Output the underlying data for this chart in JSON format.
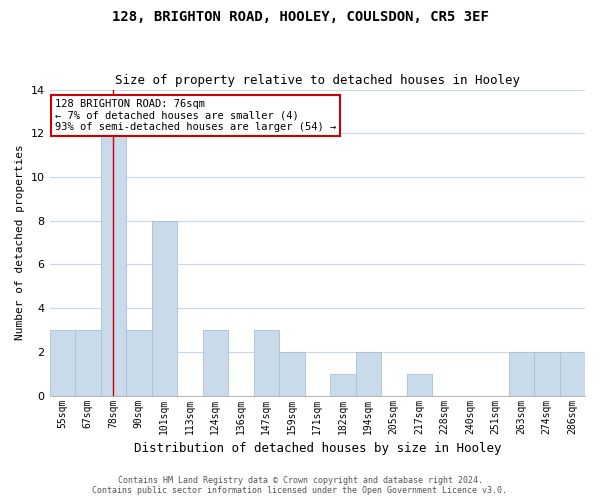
{
  "title": "128, BRIGHTON ROAD, HOOLEY, COULSDON, CR5 3EF",
  "subtitle": "Size of property relative to detached houses in Hooley",
  "xlabel": "Distribution of detached houses by size in Hooley",
  "ylabel": "Number of detached properties",
  "categories": [
    "55sqm",
    "67sqm",
    "78sqm",
    "90sqm",
    "101sqm",
    "113sqm",
    "124sqm",
    "136sqm",
    "147sqm",
    "159sqm",
    "171sqm",
    "182sqm",
    "194sqm",
    "205sqm",
    "217sqm",
    "228sqm",
    "240sqm",
    "251sqm",
    "263sqm",
    "274sqm",
    "286sqm"
  ],
  "values": [
    3,
    3,
    12,
    3,
    8,
    0,
    3,
    0,
    3,
    2,
    0,
    1,
    2,
    0,
    1,
    0,
    0,
    0,
    2,
    2,
    2
  ],
  "bar_color": "#c9daea",
  "bar_edgecolor": "#a8c0d6",
  "highlight_bar_index": 2,
  "highlight_line_color": "#cc0000",
  "ylim": [
    0,
    14
  ],
  "yticks": [
    0,
    2,
    4,
    6,
    8,
    10,
    12,
    14
  ],
  "annotation_line1": "128 BRIGHTON ROAD: 76sqm",
  "annotation_line2": "← 7% of detached houses are smaller (4)",
  "annotation_line3": "93% of semi-detached houses are larger (54) →",
  "annotation_box_edgecolor": "#cc0000",
  "annotation_box_facecolor": "#ffffff",
  "footer_line1": "Contains HM Land Registry data © Crown copyright and database right 2024.",
  "footer_line2": "Contains public sector information licensed under the Open Government Licence v3.0.",
  "background_color": "#ffffff",
  "grid_color": "#c8d8e8"
}
